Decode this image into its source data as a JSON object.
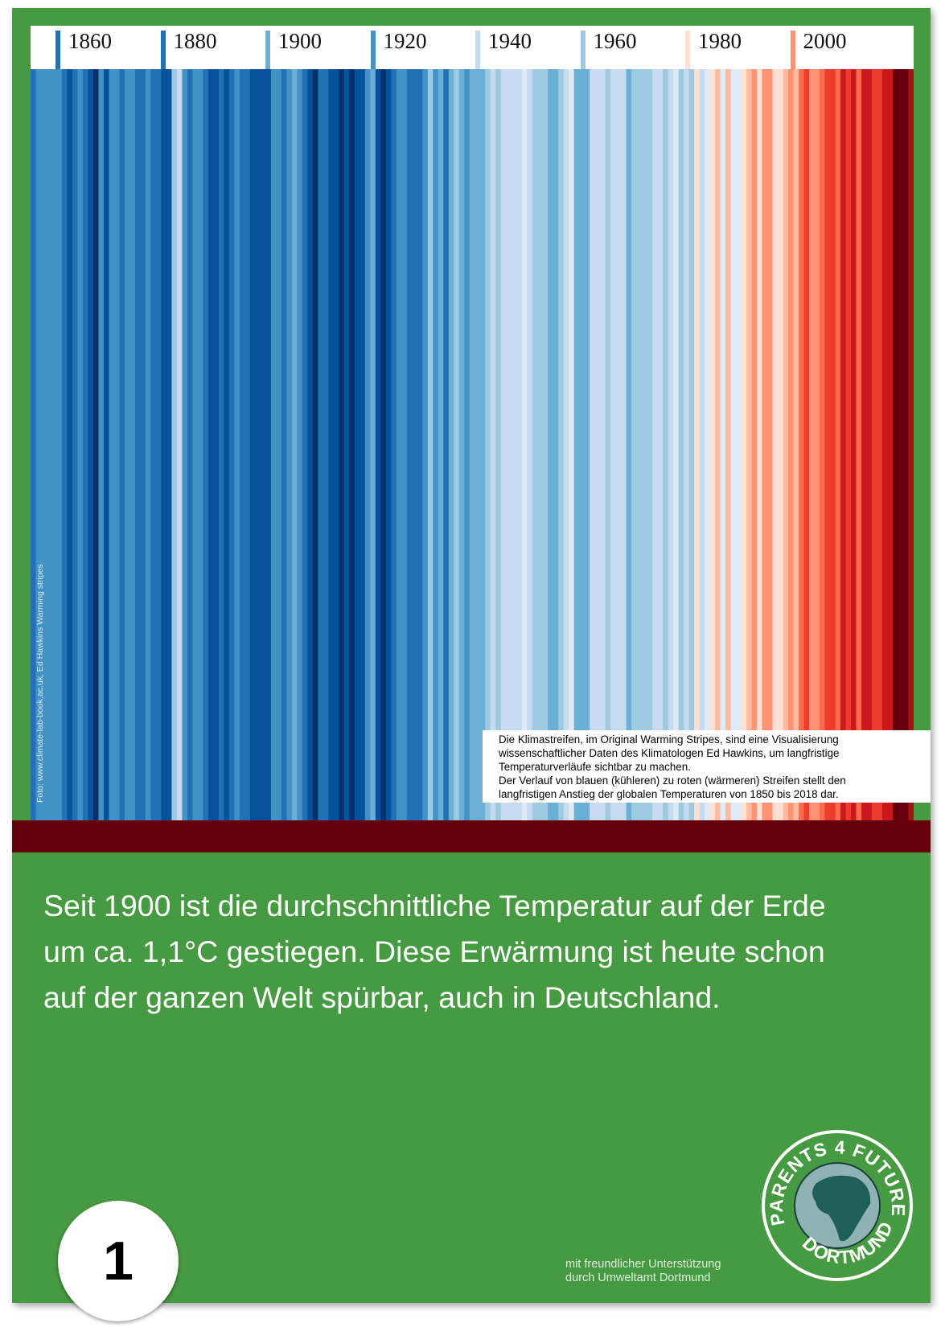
{
  "chart_data": {
    "type": "heatmap",
    "title": "",
    "x_start": 1850,
    "x_end": 2018,
    "tick_labels": [
      "1860",
      "1880",
      "1900",
      "1920",
      "1940",
      "1960",
      "1980",
      "2000"
    ],
    "colormap": [
      "#08306b",
      "#08519c",
      "#2171b5",
      "#4292c6",
      "#6baed6",
      "#9ecae1",
      "#c6dbef",
      "#deebf7",
      "#fee0d2",
      "#fcbba1",
      "#fc9272",
      "#fb6a4a",
      "#ef3b2c",
      "#cb181d",
      "#a50f15",
      "#67000d"
    ],
    "value_range": [
      -0.6,
      0.95
    ],
    "values": [
      -0.37,
      -0.22,
      -0.23,
      -0.27,
      -0.29,
      -0.3,
      -0.32,
      -0.47,
      -0.39,
      -0.28,
      -0.39,
      -0.43,
      -0.54,
      -0.3,
      -0.5,
      -0.29,
      -0.3,
      -0.32,
      -0.28,
      -0.28,
      -0.32,
      -0.35,
      -0.27,
      -0.32,
      -0.39,
      -0.44,
      -0.41,
      -0.09,
      0.0,
      -0.3,
      -0.32,
      -0.23,
      -0.29,
      -0.34,
      -0.43,
      -0.42,
      -0.36,
      -0.44,
      -0.35,
      -0.23,
      -0.4,
      -0.38,
      -0.49,
      -0.49,
      -0.44,
      -0.41,
      -0.23,
      -0.22,
      -0.37,
      -0.27,
      -0.2,
      -0.27,
      -0.38,
      -0.46,
      -0.53,
      -0.37,
      -0.31,
      -0.49,
      -0.5,
      -0.51,
      -0.49,
      -0.54,
      -0.47,
      -0.45,
      -0.26,
      -0.19,
      -0.42,
      -0.54,
      -0.42,
      -0.32,
      -0.3,
      -0.25,
      -0.32,
      -0.32,
      -0.31,
      -0.24,
      -0.11,
      -0.22,
      -0.21,
      -0.37,
      -0.16,
      -0.1,
      -0.17,
      -0.3,
      -0.14,
      -0.17,
      -0.15,
      -0.03,
      0.0,
      -0.02,
      0.05,
      0.04,
      0.0,
      0.01,
      0.15,
      0.03,
      -0.1,
      -0.11,
      -0.11,
      -0.12,
      -0.19,
      -0.06,
      0.01,
      0.08,
      -0.12,
      -0.14,
      -0.2,
      0.05,
      0.07,
      0.03,
      -0.02,
      0.05,
      0.03,
      0.04,
      -0.2,
      -0.11,
      -0.06,
      -0.02,
      -0.07,
      0.05,
      0.03,
      -0.09,
      0.01,
      0.16,
      -0.07,
      -0.01,
      -0.1,
      0.18,
      0.07,
      0.16,
      0.26,
      0.32,
      0.14,
      0.31,
      0.16,
      0.12,
      0.18,
      0.33,
      0.4,
      0.27,
      0.45,
      0.41,
      0.22,
      0.23,
      0.32,
      0.45,
      0.33,
      0.47,
      0.61,
      0.39,
      0.39,
      0.54,
      0.63,
      0.62,
      0.54,
      0.69,
      0.64,
      0.66,
      0.54,
      0.66,
      0.72,
      0.61,
      0.65,
      0.68,
      0.75,
      0.9,
      1.02,
      0.92,
      0.85
    ]
  },
  "info_box": {
    "line1": "Die Klimastreifen, im Original Warming Stripes, sind eine Visualisierung",
    "line2": "wissenschaftlicher Daten des Klimatologen Ed Hawkins, um langfristige",
    "line3": "Temperaturverläufe sichtbar zu machen.",
    "line4": "Der Verlauf von blauen (kühleren) zu roten (wärmeren) Streifen stellt den",
    "line5": "langfristigen Anstieg der globalen Temperaturen von 1850 bis 2018 dar."
  },
  "photo_credit": "Foto: www.climate-lab-book.ac.uk, Ed Hawkins Warming stripes",
  "main_text": {
    "line1": "Seit 1900 ist die durchschnittliche Temperatur auf der Erde",
    "line2": "um ca. 1,1°C gestiegen. Diese Erwärmung ist heute schon",
    "line3": "auf der ganzen Welt spürbar, auch in Deutschland."
  },
  "page_number": "1",
  "support": {
    "line1": "mit freundlicher Unterstützung",
    "line2": "durch Umweltamt Dortmund"
  },
  "logo": {
    "top": "PARENTS 4 FUTURE",
    "bottom": "DORTMUND",
    "icon": "globe-icon"
  },
  "colors": {
    "poster_green": "#469a41",
    "band_red": "#67000d",
    "globe": "#1f5f5a"
  }
}
